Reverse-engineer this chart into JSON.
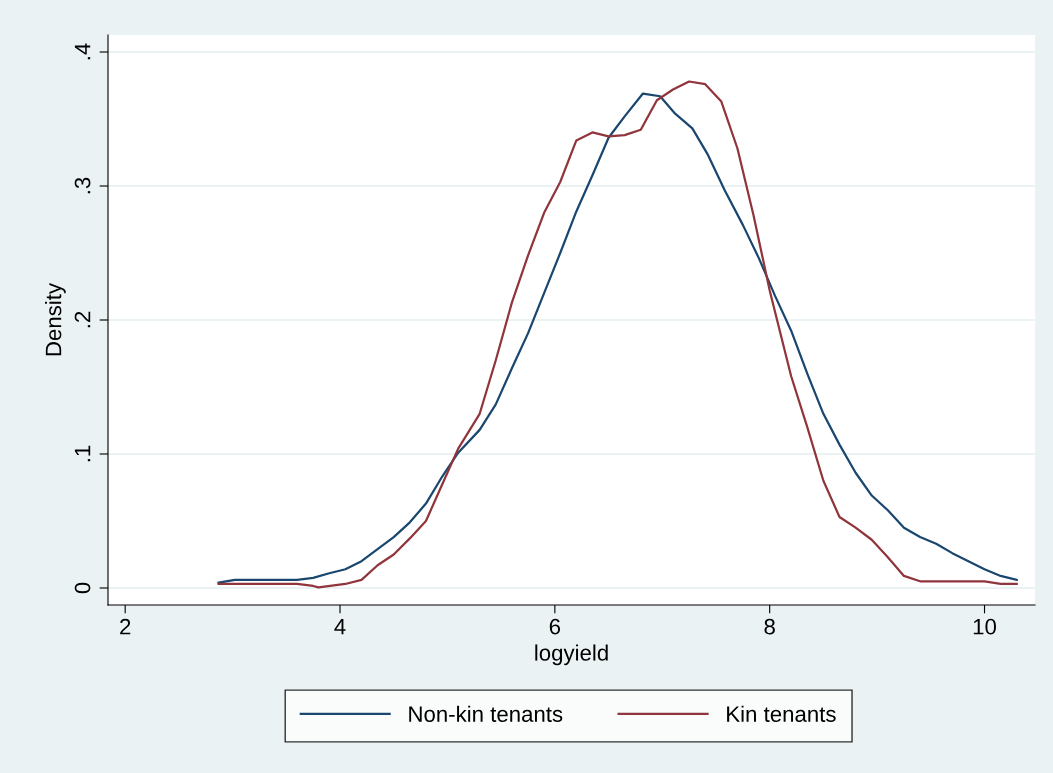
{
  "chart_data": {
    "type": "line",
    "xlabel": "logyield",
    "ylabel": "Density",
    "xlim": [
      1.84,
      10.47
    ],
    "xticks": [
      2,
      4,
      6,
      8,
      10
    ],
    "ylim": [
      -0.0127,
      0.4127
    ],
    "yticks": [
      {
        "value": 0,
        "label": "0"
      },
      {
        "value": 0.1,
        "label": ".1"
      },
      {
        "value": 0.2,
        "label": ".2"
      },
      {
        "value": 0.3,
        "label": ".3"
      },
      {
        "value": 0.4,
        "label": ".4"
      }
    ],
    "grid": "y",
    "legend": "bottom",
    "marker": "none",
    "line_style": "solid",
    "series": [
      {
        "name": "Non-kin tenants",
        "color": "#1a476f",
        "x": [
          2.87,
          3.02,
          3.6,
          3.75,
          3.9,
          4.05,
          4.2,
          4.5,
          4.65,
          4.8,
          4.95,
          5.1,
          5.3,
          5.45,
          5.6,
          5.75,
          5.9,
          6.05,
          6.2,
          6.35,
          6.5,
          6.65,
          6.82,
          6.98,
          7.12,
          7.28,
          7.42,
          7.58,
          7.75,
          7.9,
          8.05,
          8.2,
          8.35,
          8.5,
          8.65,
          8.8,
          8.95,
          9.1,
          9.25,
          9.4,
          9.55,
          9.7,
          9.85,
          10.0,
          10.15,
          10.3
        ],
        "values": [
          0.004,
          0.006,
          0.006,
          0.0075,
          0.011,
          0.014,
          0.02,
          0.038,
          0.049,
          0.063,
          0.083,
          0.101,
          0.118,
          0.137,
          0.164,
          0.19,
          0.22,
          0.25,
          0.281,
          0.308,
          0.336,
          0.352,
          0.369,
          0.367,
          0.354,
          0.343,
          0.324,
          0.297,
          0.271,
          0.246,
          0.218,
          0.192,
          0.16,
          0.13,
          0.107,
          0.086,
          0.069,
          0.058,
          0.045,
          0.038,
          0.033,
          0.026,
          0.02,
          0.014,
          0.009,
          0.006
        ]
      },
      {
        "name": "Kin tenants",
        "color": "#90353b",
        "x": [
          2.87,
          3.6,
          3.75,
          3.8,
          4.05,
          4.2,
          4.35,
          4.5,
          4.65,
          4.8,
          4.95,
          5.1,
          5.3,
          5.45,
          5.6,
          5.75,
          5.9,
          6.05,
          6.2,
          6.35,
          6.5,
          6.65,
          6.8,
          6.95,
          7.1,
          7.25,
          7.4,
          7.55,
          7.7,
          7.85,
          8.0,
          8.2,
          8.35,
          8.5,
          8.65,
          8.8,
          8.95,
          9.1,
          9.25,
          9.4,
          10.0,
          10.15,
          10.3
        ],
        "values": [
          0.003,
          0.003,
          0.0015,
          0.0005,
          0.003,
          0.006,
          0.017,
          0.025,
          0.037,
          0.05,
          0.077,
          0.104,
          0.13,
          0.17,
          0.213,
          0.248,
          0.28,
          0.303,
          0.334,
          0.34,
          0.337,
          0.338,
          0.342,
          0.364,
          0.372,
          0.378,
          0.376,
          0.363,
          0.328,
          0.278,
          0.222,
          0.158,
          0.12,
          0.08,
          0.053,
          0.045,
          0.036,
          0.023,
          0.009,
          0.005,
          0.005,
          0.003,
          0.003
        ]
      }
    ]
  }
}
